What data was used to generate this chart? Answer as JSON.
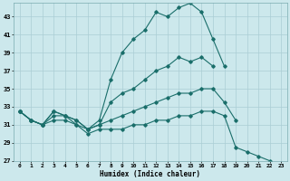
{
  "xlabel": "Humidex (Indice chaleur)",
  "bg_color": "#cce8ec",
  "grid_color": "#aacdd4",
  "line_color": "#1a6e6a",
  "xlim": [
    -0.5,
    23.5
  ],
  "ylim": [
    27,
    44.5
  ],
  "yticks": [
    27,
    29,
    31,
    33,
    35,
    37,
    39,
    41,
    43
  ],
  "xticks": [
    0,
    1,
    2,
    3,
    4,
    5,
    6,
    7,
    8,
    9,
    10,
    11,
    12,
    13,
    14,
    15,
    16,
    17,
    18,
    19,
    20,
    21,
    22,
    23
  ],
  "line1_y": [
    32.5,
    31.5,
    31.0,
    32.5,
    32.0,
    31.5,
    30.5,
    31.5,
    36.0,
    39.0,
    40.5,
    41.5,
    43.5,
    43.0,
    44.0,
    44.5,
    43.5,
    40.5,
    37.5,
    null,
    null,
    null,
    null,
    null
  ],
  "line2_y": [
    32.5,
    31.5,
    31.0,
    32.5,
    32.0,
    31.5,
    30.5,
    31.0,
    33.5,
    34.5,
    35.0,
    36.0,
    37.0,
    37.5,
    38.5,
    38.0,
    38.5,
    37.5,
    null,
    null,
    null,
    null,
    null,
    null
  ],
  "line3_y": [
    32.5,
    31.5,
    31.0,
    32.0,
    32.0,
    31.0,
    30.5,
    31.0,
    31.5,
    32.0,
    32.5,
    33.0,
    33.5,
    34.0,
    34.5,
    34.5,
    35.0,
    35.0,
    33.5,
    31.5,
    null,
    null,
    null,
    null
  ],
  "line4_y": [
    32.5,
    31.5,
    31.0,
    31.5,
    31.5,
    31.0,
    30.0,
    30.5,
    30.5,
    30.5,
    31.0,
    31.0,
    31.5,
    31.5,
    32.0,
    32.0,
    32.5,
    32.5,
    32.0,
    28.5,
    28.0,
    27.5,
    27.0,
    null
  ]
}
